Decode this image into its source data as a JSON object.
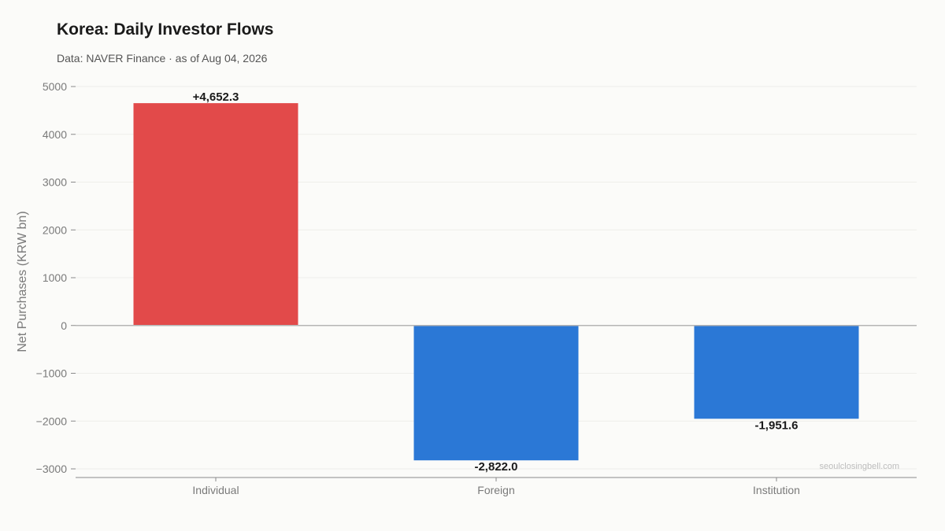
{
  "title": "Korea: Daily Investor Flows",
  "subtitle": "Data: NAVER Finance · as of Aug 04, 2026",
  "watermark": "seoulclosingbell.com",
  "colors": {
    "positive": "#e24a4a",
    "negative": "#2b78d6",
    "grid": "#eeeeea",
    "zero_line": "#b5b5b5",
    "axis": "#8a8a8a"
  },
  "chart_data": {
    "type": "bar",
    "title": "Korea: Daily Investor Flows",
    "xlabel": "",
    "ylabel": "Net Purchases (KRW bn)",
    "categories": [
      "Individual",
      "Foreign",
      "Institution"
    ],
    "values": [
      4652.3,
      -2822.0,
      -1951.6
    ],
    "data_labels": [
      "+4,652.3",
      "-2,822.0",
      "-1,951.6"
    ],
    "ylim": [
      -3000,
      5000
    ],
    "yticks": [
      5000,
      4000,
      3000,
      2000,
      1000,
      0,
      -1000,
      -2000,
      -3000
    ],
    "ytick_labels": [
      "5000",
      "4000",
      "3000",
      "2000",
      "1000",
      "0",
      "−1000",
      "−2000",
      "−3000"
    ],
    "grid": true,
    "legend": "none"
  }
}
